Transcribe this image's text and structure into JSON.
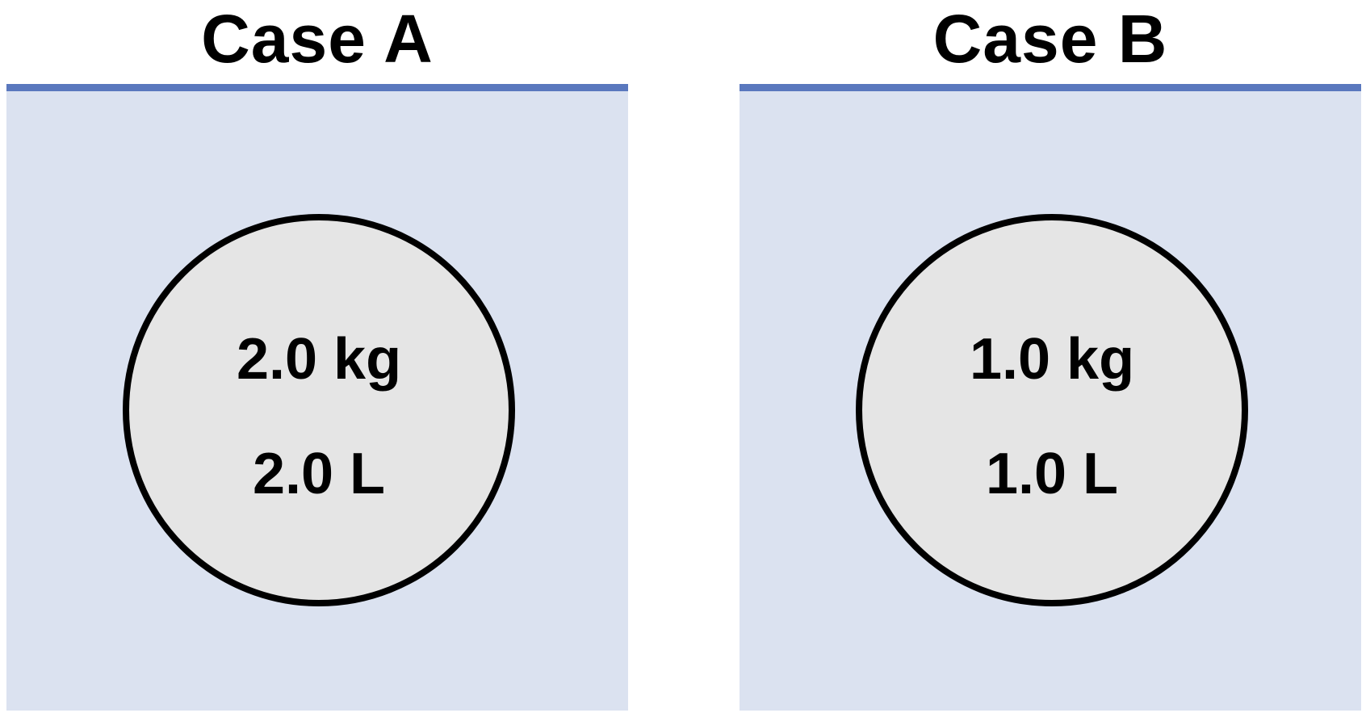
{
  "cases": [
    {
      "title": "Case A",
      "mass": "2.0 kg",
      "volume": "2.0 L"
    },
    {
      "title": "Case B",
      "mass": "1.0 kg",
      "volume": "1.0 L"
    }
  ],
  "colors": {
    "liquid": "#dbe2f0",
    "surface": "#5a78be",
    "object_fill": "#e5e5e5",
    "outline": "#000000"
  }
}
